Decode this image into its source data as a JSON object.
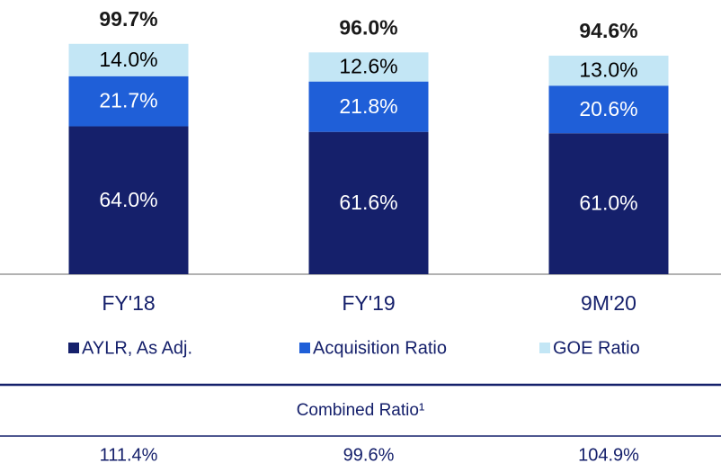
{
  "chart_data": {
    "type": "stacked_bar",
    "categories": [
      "FY'18",
      "FY'19",
      "9M'20"
    ],
    "series": [
      {
        "name": "AYLR, As Adj.",
        "color": "#15206b",
        "values": [
          64.0,
          61.6,
          61.0
        ],
        "value_labels": [
          "64.0%",
          "61.6%",
          "61.0%"
        ]
      },
      {
        "name": "Acquisition Ratio",
        "color": "#1f5fd8",
        "values": [
          21.7,
          21.8,
          20.6
        ],
        "value_labels": [
          "21.7%",
          "21.8%",
          "20.6%"
        ]
      },
      {
        "name": "GOE Ratio",
        "color": "#c3e6f5",
        "values": [
          14.0,
          12.6,
          13.0
        ],
        "value_labels": [
          "14.0%",
          "12.6%",
          "13.0%"
        ]
      }
    ],
    "totals": [
      99.7,
      96.0,
      94.6
    ],
    "total_labels": [
      "99.7%",
      "96.0%",
      "94.6%"
    ],
    "ylim": [
      0,
      100
    ]
  },
  "table": {
    "header": "Combined Ratio¹",
    "cells": [
      "111.4%",
      "99.6%",
      "104.9%"
    ]
  }
}
